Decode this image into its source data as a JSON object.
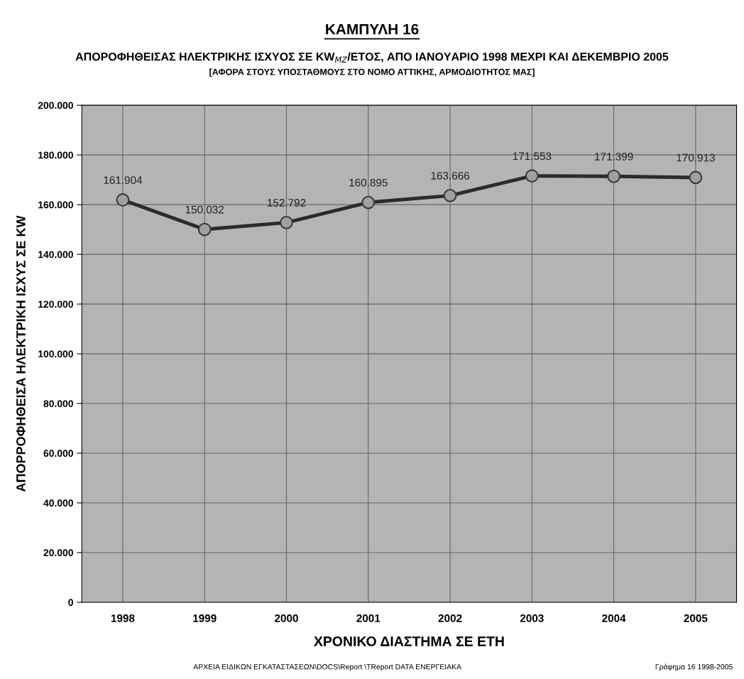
{
  "chart_data": {
    "type": "line",
    "title": "ΚΑΜΠΥΛΗ 16",
    "subtitle": "ΑΠΟΡΟΦΗΘΕΙΣΑΣ ΗΛΕΚΤΡΙΚΗΣ ΙΣΧΥΟΣ ΣΕ KW$_{MZ}$/ΕΤΟΣ, ΑΠΟ ΙΑΝΟΥΑΡΙΟ 1998 ΜΕΧΡΙ ΚΑΙ ΔΕΚΕΜΒΡΙΟ 2005\n[ΑΦΟΡΑ ΣΤΟΥΣ ΥΠΟΣΤΑΘΜΟΥΣ ΣΤΟ ΝΟΜΟ ΑΤΤΙΚΗΣ, ΑΡΜΟΔΙΟΤΗΤΟΣ ΜΑΣ]",
    "xlabel": "ΧΡΟΝΙΚΟ ΔΙΑΣΤΗΜΑ ΣΕ ΕΤΗ",
    "ylabel": "ΑΠΟΡΡΟΦΗΘΕΙΣΑ ΗΛΕΚΤΡΙΚΗ ΙΣΧΥΣ ΣΕ KW",
    "annotations": [
      "ΑΡΧΕΙΑ ΕΙΔΙΚΩΝ ΕΓΚΑΤΑΣΤΑΣΕΩΝ\\DOCS\\Report \\TReport DATA ΕΝΕΡΓΕΙΑΚΑ",
      "Γράφημα 16 1998-2005"
    ],
    "categories": [
      "1998",
      "1999",
      "2000",
      "2001",
      "2002",
      "2003",
      "2004",
      "2005"
    ],
    "series": [
      {
        "color": "#2b2b2b",
        "values": [
          161904,
          150032,
          152792,
          160895,
          163666,
          171553,
          171399,
          170913
        ],
        "value_labels": [
          "161.904",
          "150.032",
          "152.792",
          "160.895",
          "163.666",
          "171.553",
          "171.399",
          "170.913"
        ]
      }
    ],
    "ylim": [
      0,
      200000
    ],
    "yticks": [
      {
        "value": 0,
        "label": "0"
      },
      {
        "value": 20000,
        "label": "20.000"
      },
      {
        "value": 40000,
        "label": "40.000"
      },
      {
        "value": 60000,
        "label": "60.000"
      },
      {
        "value": 80000,
        "label": "80.000"
      },
      {
        "value": 100000,
        "label": "100.000"
      },
      {
        "value": 120000,
        "label": "120.000"
      },
      {
        "value": 140000,
        "label": "140.000"
      },
      {
        "value": 160000,
        "label": "160.000"
      },
      {
        "value": 180000,
        "label": "180.000"
      },
      {
        "value": 200000,
        "label": "200.000"
      }
    ],
    "grid": true,
    "marker": "circle",
    "line_style": "solid",
    "legend": false
  }
}
